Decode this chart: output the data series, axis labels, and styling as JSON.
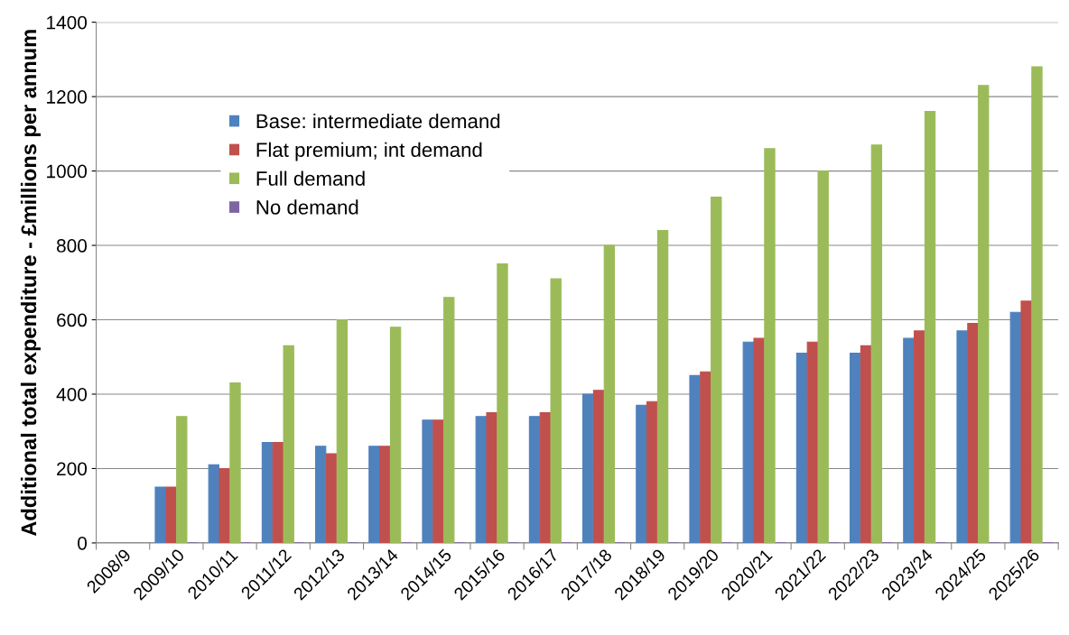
{
  "chart_data": {
    "type": "bar",
    "ylabel": "Additional total expenditure - £millions per annum",
    "categories": [
      "2008/9",
      "2009/10",
      "2010/11",
      "2011/12",
      "2012/13",
      "2013/14",
      "2014/15",
      "2015/16",
      "2016/17",
      "2017/18",
      "2018/19",
      "2019/20",
      "2020/21",
      "2021/22",
      "2022/23",
      "2023/24",
      "2024/25",
      "2025/26"
    ],
    "series": [
      {
        "name": "Base: intermediate demand",
        "color": "#4f81bd",
        "values": [
          null,
          150,
          210,
          270,
          260,
          260,
          330,
          340,
          340,
          400,
          370,
          450,
          540,
          510,
          510,
          550,
          570,
          620
        ]
      },
      {
        "name": "Flat premium; int demand",
        "color": "#c0504d",
        "values": [
          null,
          150,
          200,
          270,
          240,
          260,
          330,
          350,
          350,
          410,
          380,
          460,
          550,
          540,
          530,
          570,
          590,
          650
        ]
      },
      {
        "name": "Full demand",
        "color": "#9bbb59",
        "values": [
          null,
          340,
          430,
          530,
          600,
          580,
          660,
          750,
          710,
          800,
          840,
          930,
          1060,
          1000,
          1070,
          1160,
          1230,
          1280
        ]
      },
      {
        "name": "No demand",
        "color": "#8064a2",
        "values": [
          null,
          0,
          0,
          0,
          0,
          0,
          0,
          0,
          0,
          0,
          0,
          0,
          0,
          0,
          0,
          0,
          0,
          0
        ]
      }
    ],
    "ylim": [
      0,
      1400
    ],
    "yticks": [
      0,
      200,
      400,
      600,
      800,
      1000,
      1200,
      1400
    ],
    "grid": "y",
    "legend": "top left"
  }
}
